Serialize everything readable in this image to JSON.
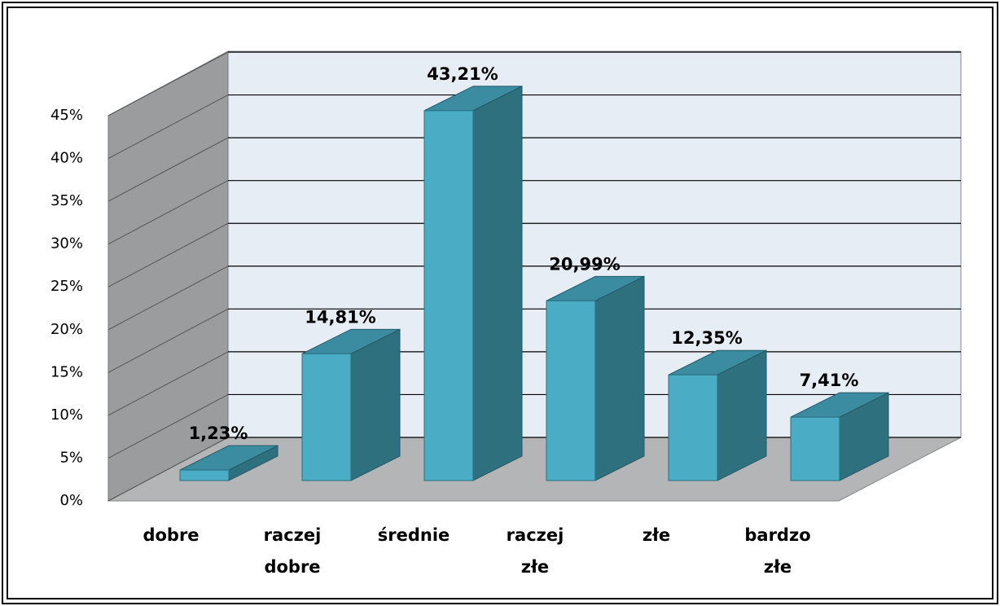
{
  "chart_data": {
    "type": "bar3d",
    "categories": [
      "dobre",
      "raczej\ndobre",
      "średnie",
      "raczej\nzłe",
      "złe",
      "bardzo\nzłe"
    ],
    "values": [
      1.23,
      14.81,
      43.21,
      20.99,
      12.35,
      7.41
    ],
    "value_labels": [
      "1,23%",
      "14,81%",
      "43,21%",
      "20,99%",
      "12,35%",
      "7,41%"
    ],
    "color": "#4bacc6",
    "ylim": [
      0,
      45
    ],
    "yticks": [
      {
        "value": 0,
        "label": "0%"
      },
      {
        "value": 5,
        "label": "5%"
      },
      {
        "value": 10,
        "label": "10%"
      },
      {
        "value": 15,
        "label": "15%"
      },
      {
        "value": 20,
        "label": "20%"
      },
      {
        "value": 25,
        "label": "25%"
      },
      {
        "value": 30,
        "label": "30%"
      },
      {
        "value": 35,
        "label": "35%"
      },
      {
        "value": 40,
        "label": "40%"
      },
      {
        "value": 45,
        "label": "45%"
      }
    ],
    "grid": true
  }
}
